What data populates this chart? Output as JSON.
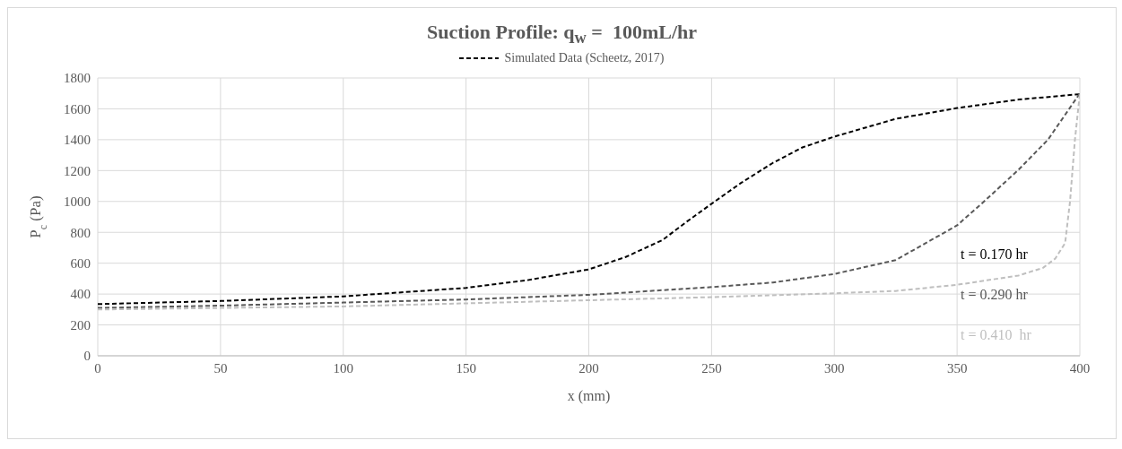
{
  "chart_data": {
    "type": "line",
    "title": "Suction Profile: q$_{w}$ =  100mL/hr",
    "xlabel": "x (mm)",
    "ylabel": "P$_{c}$ (Pa)",
    "xlim": [
      0,
      400
    ],
    "xticks": [
      0,
      50,
      100,
      150,
      200,
      250,
      300,
      350,
      400
    ],
    "ylim": [
      0,
      1800
    ],
    "yticks": [
      0,
      200,
      400,
      600,
      800,
      1000,
      1200,
      1400,
      1600,
      1800
    ],
    "grid": true,
    "legend": "top",
    "line_style": "dashed",
    "marker": "none",
    "series": [
      {
        "name": "Simulated Data (Scheetz, 2017)",
        "color": "#000000",
        "x": [
          0,
          50,
          100,
          150,
          175,
          200,
          215,
          230,
          240,
          250,
          262,
          275,
          287,
          300,
          325,
          350,
          375,
          400
        ],
        "values": [
          335,
          355,
          385,
          440,
          490,
          560,
          640,
          750,
          870,
          985,
          1120,
          1250,
          1350,
          1420,
          1535,
          1605,
          1660,
          1695
        ]
      },
      {
        "color": "#595959",
        "x": [
          0,
          50,
          100,
          150,
          200,
          250,
          275,
          300,
          325,
          350,
          361,
          375,
          387,
          400
        ],
        "values": [
          310,
          325,
          345,
          365,
          395,
          445,
          475,
          530,
          620,
          845,
          1000,
          1205,
          1400,
          1700
        ]
      },
      {
        "color": "#bfbfbf",
        "x": [
          0,
          50,
          100,
          150,
          200,
          250,
          300,
          325,
          350,
          375,
          385,
          390,
          394,
          396,
          398,
          400
        ],
        "values": [
          300,
          310,
          320,
          340,
          360,
          380,
          405,
          420,
          460,
          520,
          570,
          630,
          730,
          1000,
          1400,
          1700
        ]
      }
    ],
    "annotations": [
      "t = 0.170 hr",
      "t = 0.290 hr",
      "t = 0.410  hr"
    ]
  }
}
